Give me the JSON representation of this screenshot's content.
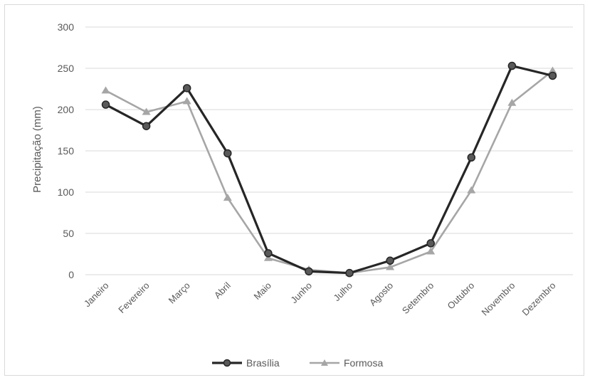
{
  "chart_data": {
    "type": "line",
    "categories": [
      "Janeiro",
      "Fevereiro",
      "Março",
      "Abril",
      "Maio",
      "Junho",
      "Julho",
      "Agosto",
      "Setembro",
      "Outubro",
      "Novembro",
      "Dezembro"
    ],
    "series": [
      {
        "name": "Brasília",
        "color": "#262626",
        "marker": "circle",
        "values": [
          206,
          180,
          226,
          147,
          26,
          4,
          2,
          17,
          38,
          142,
          253,
          241
        ]
      },
      {
        "name": "Formosa",
        "color": "#a6a6a6",
        "marker": "triangle",
        "values": [
          223,
          197,
          210,
          93,
          20,
          6,
          2,
          9,
          28,
          102,
          208,
          247
        ]
      }
    ],
    "ylabel": "Precipitação  (mm)",
    "xlabel": "",
    "ylim": [
      0,
      300
    ],
    "yticks": [
      0,
      50,
      100,
      150,
      200,
      250,
      300
    ],
    "grid": true,
    "legend": "bottom"
  }
}
